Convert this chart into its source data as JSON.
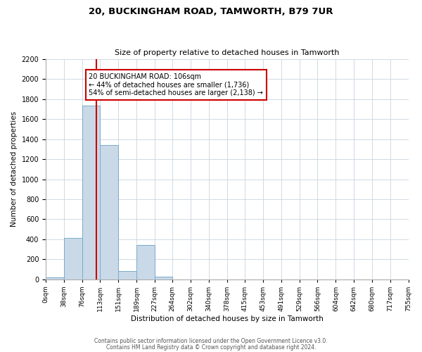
{
  "title1": "20, BUCKINGHAM ROAD, TAMWORTH, B79 7UR",
  "title2": "Size of property relative to detached houses in Tamworth",
  "xlabel": "Distribution of detached houses by size in Tamworth",
  "ylabel": "Number of detached properties",
  "bar_edges": [
    0,
    38,
    76,
    113,
    151,
    189,
    227,
    264,
    302,
    340,
    378,
    415,
    453,
    491,
    529,
    566,
    604,
    642,
    680,
    717,
    755
  ],
  "bar_heights": [
    18,
    415,
    1735,
    1340,
    80,
    340,
    25,
    0,
    0,
    0,
    0,
    0,
    0,
    0,
    0,
    0,
    0,
    0,
    0,
    0
  ],
  "bar_color": "#c9d9e8",
  "bar_edgecolor": "#7aaac8",
  "property_line_x": 106,
  "property_line_color": "#cc0000",
  "ylim": [
    0,
    2200
  ],
  "yticks": [
    0,
    200,
    400,
    600,
    800,
    1000,
    1200,
    1400,
    1600,
    1800,
    2000,
    2200
  ],
  "tick_labels": [
    "0sqm",
    "38sqm",
    "76sqm",
    "113sqm",
    "151sqm",
    "189sqm",
    "227sqm",
    "264sqm",
    "302sqm",
    "340sqm",
    "378sqm",
    "415sqm",
    "453sqm",
    "491sqm",
    "529sqm",
    "566sqm",
    "604sqm",
    "642sqm",
    "680sqm",
    "717sqm",
    "755sqm"
  ],
  "annotation_title": "20 BUCKINGHAM ROAD: 106sqm",
  "annotation_line1": "← 44% of detached houses are smaller (1,736)",
  "annotation_line2": "54% of semi-detached houses are larger (2,138) →",
  "footer1": "Contains HM Land Registry data © Crown copyright and database right 2024.",
  "footer2": "Contains public sector information licensed under the Open Government Licence v3.0.",
  "bg_color": "#ffffff",
  "grid_color": "#c8d4e0"
}
